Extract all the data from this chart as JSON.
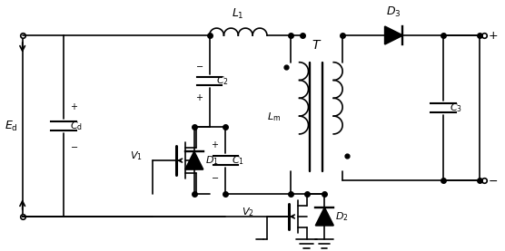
{
  "figsize": [
    5.56,
    2.77
  ],
  "dpi": 100,
  "bg_color": "white",
  "lw": 1.2
}
